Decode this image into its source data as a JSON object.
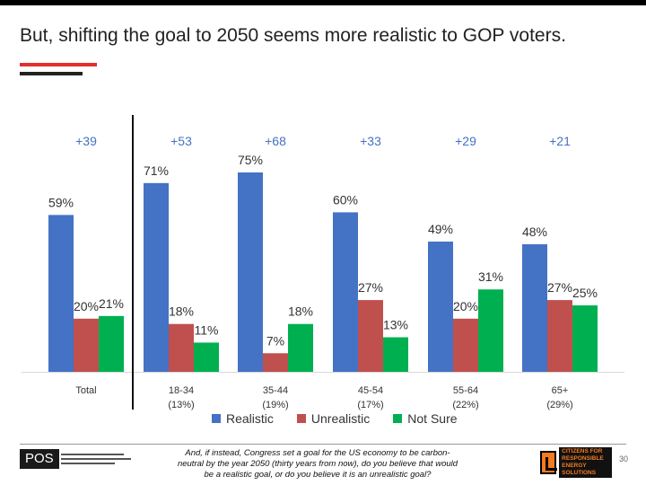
{
  "slide": {
    "title": "But, shifting the goal to 2050 seems more realistic to GOP voters.",
    "footnote": "And, if instead, Congress set a goal for the US economy to be carbon-neutral by the year 2050 (thirty years from now), do you believe that would be a realistic goal, or do you believe it is an unrealistic goal?",
    "page_number": "30",
    "logo_left": "POS",
    "logo_right": [
      "CITIZENS FOR",
      "RESPONSIBLE",
      "ENERGY SOLUTIONS"
    ]
  },
  "colors": {
    "realistic": "#4472c4",
    "unrealistic": "#c0504d",
    "not_sure": "#00b050",
    "net": "#4472c4"
  },
  "chart_data": {
    "type": "bar",
    "title": "",
    "xlabel": "",
    "ylabel": "",
    "ylim": [
      0,
      80
    ],
    "grid": false,
    "legend_position": "bottom",
    "categories": [
      "Total",
      "18-34",
      "35-44",
      "45-54",
      "55-64",
      "65+"
    ],
    "category_shares": [
      "",
      "(13%)",
      "(19%)",
      "(17%)",
      "(22%)",
      "(29%)"
    ],
    "net_labels": [
      "+39",
      "+53",
      "+68",
      "+33",
      "+29",
      "+21"
    ],
    "series": [
      {
        "name": "Realistic",
        "values": [
          59,
          71,
          75,
          60,
          49,
          48
        ],
        "labels": [
          "59%",
          "71%",
          "75%",
          "60%",
          "49%",
          "48%"
        ]
      },
      {
        "name": "Unrealistic",
        "values": [
          20,
          18,
          7,
          27,
          20,
          27
        ],
        "labels": [
          "20%",
          "18%",
          "7%",
          "27%",
          "20%",
          "27%"
        ]
      },
      {
        "name": "Not Sure",
        "values": [
          21,
          11,
          18,
          13,
          31,
          25
        ],
        "labels": [
          "21%",
          "11%",
          "18%",
          "13%",
          "31%",
          "25%"
        ]
      }
    ]
  }
}
